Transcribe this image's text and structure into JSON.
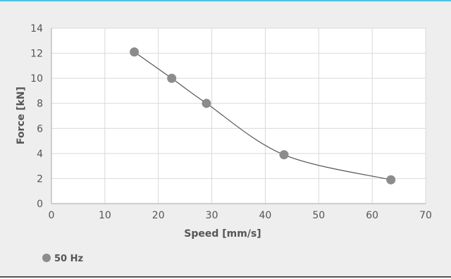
{
  "chart_data": {
    "type": "scatter",
    "title": "",
    "xlabel": "Speed [mm/s]",
    "ylabel": "Force [kN]",
    "xlim": [
      0,
      70
    ],
    "ylim": [
      0,
      14
    ],
    "xticks": [
      0,
      10,
      20,
      30,
      40,
      50,
      60,
      70
    ],
    "yticks": [
      0,
      2,
      4,
      6,
      8,
      10,
      12,
      14
    ],
    "grid": true,
    "legend_position": "bottom-left",
    "series": [
      {
        "name": "50 Hz",
        "color": "#8c8c8c",
        "smooth_line": true,
        "line_color": "#555555",
        "points": [
          {
            "x": 15.5,
            "y": 12.1
          },
          {
            "x": 22.5,
            "y": 10.0
          },
          {
            "x": 29.0,
            "y": 8.0
          },
          {
            "x": 43.5,
            "y": 3.9
          },
          {
            "x": 63.5,
            "y": 1.9
          }
        ]
      }
    ]
  }
}
